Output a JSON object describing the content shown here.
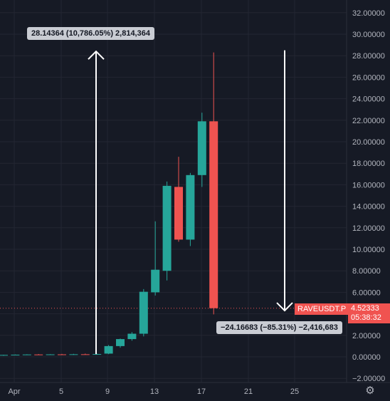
{
  "chart_data": {
    "type": "candlestick",
    "symbol": "RAVEUSDT.P",
    "last_price": "4.52333",
    "countdown": "05:38:32",
    "colors": {
      "up": "#26a69a",
      "down": "#ef5350",
      "background": "#161a25",
      "grid": "#232632",
      "text": "#b2b5be"
    },
    "ylim": [
      -2,
      32
    ],
    "y_ticks": [
      "−2.00000",
      "0.00000",
      "2.00000",
      "4.00000",
      "6.00000",
      "8.00000",
      "10.00000",
      "12.00000",
      "14.00000",
      "16.00000",
      "18.00000",
      "20.00000",
      "22.00000",
      "24.00000",
      "26.00000",
      "28.00000",
      "30.00000",
      "32.00000"
    ],
    "x_ticks": [
      "Apr",
      "5",
      "9",
      "13",
      "17",
      "21",
      "25"
    ],
    "candles": [
      {
        "o": 0.15,
        "h": 0.2,
        "l": 0.1,
        "c": 0.18
      },
      {
        "o": 0.18,
        "h": 0.22,
        "l": 0.14,
        "c": 0.2
      },
      {
        "o": 0.2,
        "h": 0.24,
        "l": 0.16,
        "c": 0.22
      },
      {
        "o": 0.22,
        "h": 0.26,
        "l": 0.18,
        "c": 0.21
      },
      {
        "o": 0.21,
        "h": 0.25,
        "l": 0.17,
        "c": 0.23
      },
      {
        "o": 0.23,
        "h": 0.27,
        "l": 0.19,
        "c": 0.22
      },
      {
        "o": 0.22,
        "h": 0.28,
        "l": 0.18,
        "c": 0.24
      },
      {
        "o": 0.24,
        "h": 0.3,
        "l": 0.2,
        "c": 0.23
      },
      {
        "o": 0.23,
        "h": 0.3,
        "l": 0.19,
        "c": 0.26
      },
      {
        "o": 0.3,
        "h": 1.1,
        "l": 0.25,
        "c": 1.0
      },
      {
        "o": 1.0,
        "h": 1.7,
        "l": 0.85,
        "c": 1.65
      },
      {
        "o": 1.65,
        "h": 2.3,
        "l": 1.5,
        "c": 2.15
      },
      {
        "o": 2.15,
        "h": 6.3,
        "l": 1.9,
        "c": 6.05
      },
      {
        "o": 6.0,
        "h": 12.6,
        "l": 5.7,
        "c": 8.1
      },
      {
        "o": 8.0,
        "h": 16.3,
        "l": 7.1,
        "c": 15.9
      },
      {
        "o": 15.8,
        "h": 18.6,
        "l": 10.7,
        "c": 10.9
      },
      {
        "o": 10.9,
        "h": 17.1,
        "l": 10.3,
        "c": 16.9
      },
      {
        "o": 16.9,
        "h": 22.7,
        "l": 15.8,
        "c": 21.9
      },
      {
        "o": 21.9,
        "h": 28.3,
        "l": 3.95,
        "c": 4.52333
      }
    ],
    "measures": [
      {
        "label": "28.14364 (10,786.05%) 2,814,364",
        "from": 0.26,
        "to": 28.4
      },
      {
        "label": "−24.16683 (−85.31%) −2,416,683",
        "from": 28.5,
        "to": 4.3
      }
    ]
  }
}
